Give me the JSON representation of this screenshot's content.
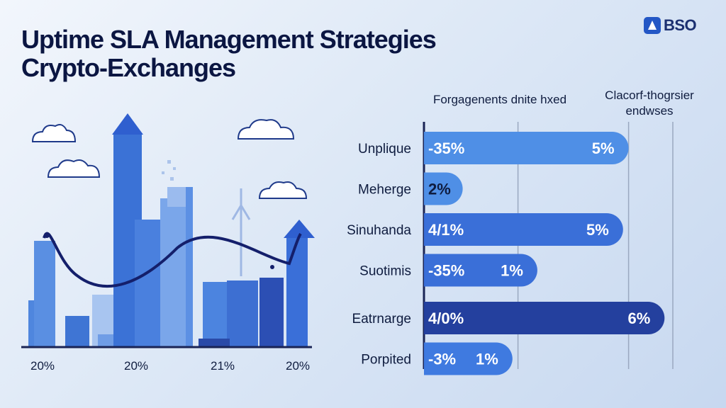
{
  "header": {
    "title_line1": "Uptime SLA Management Strategies",
    "title_line2": "Crypto-Exchanges",
    "logo_text": "BSO"
  },
  "colors": {
    "bar_light": "#4f8fe6",
    "bar_mid": "#3a6fd8",
    "bar_dark": "#24409e",
    "bar_deep": "#1f3590",
    "curve": "#141f6b",
    "column": "#3c73d6",
    "column_light": "#8bb4ee"
  },
  "left_illustration": {
    "icons": [
      "cloud-icon",
      "cloud-icon",
      "cloud-icon",
      "cloud-icon",
      "arrow-up-icon",
      "arrow-up-icon",
      "wind-turbine-icon"
    ],
    "bottom_labels": [
      "20%",
      "20%",
      "21%",
      "20%"
    ]
  },
  "chart_data": {
    "type": "bar",
    "orientation": "horizontal",
    "column_headers": [
      "Forgagenents dnite hxed",
      "Clacorf-thogrsier\nendwses"
    ],
    "categories": [
      "Unplique",
      "Meherge",
      "Sinuhanda",
      "Suotimis",
      "Eatrnarge",
      "Porpited"
    ],
    "left_labels": [
      "-35%",
      "2%",
      "4/1%",
      "-35%",
      "4/0%",
      "-3%"
    ],
    "right_labels": [
      "5%",
      "",
      "5%",
      "1%",
      "6%",
      "1%"
    ],
    "lengths": [
      0.74,
      0.14,
      0.72,
      0.41,
      0.87,
      0.32
    ],
    "grid": true
  }
}
